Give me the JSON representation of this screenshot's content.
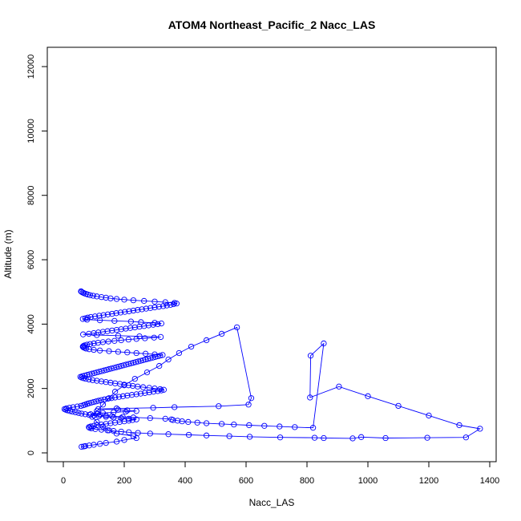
{
  "chart_data": {
    "type": "line",
    "title": "ATOM4 Northeast_Pacific_2 Nacc_LAS",
    "xlabel": "Nacc_LAS",
    "ylabel": "Altitude (m)",
    "xlim": [
      0,
      1400
    ],
    "ylim": [
      0,
      12500
    ],
    "x_ticks": [
      0,
      200,
      400,
      600,
      800,
      1000,
      1200,
      1400
    ],
    "y_ticks": [
      0,
      2000,
      4000,
      6000,
      8000,
      10000,
      12000
    ],
    "grid": false,
    "legend": "none",
    "color": "#0000ff",
    "marker": "open-circle",
    "series": [
      {
        "x": [
          60,
          67,
          72,
          85,
          100,
          120,
          140,
          175,
          200,
          240,
          230,
          175,
          150,
          130,
          110,
          95,
          110,
          130,
          150,
          170,
          200,
          235,
          275,
          315,
          345,
          380,
          420,
          470,
          520,
          570,
          617,
          608,
          510,
          365,
          295,
          175,
          115,
          180,
          210,
          240,
          205,
          165,
          130,
          110,
          90,
          120,
          140,
          160,
          195,
          230,
          285,
          335,
          355,
          360,
          375,
          390,
          410,
          440,
          470,
          520,
          560,
          610,
          660,
          710,
          760,
          820,
          855,
          812,
          810,
          905,
          1000,
          1100,
          1200,
          1300,
          1368,
          1322,
          1195,
          1058,
          978,
          950,
          855,
          825,
          712,
          612,
          545,
          470,
          412,
          345,
          285,
          245,
          215,
          190,
          165,
          145,
          125,
          105,
          92,
          86,
          84,
          90,
          100,
          110,
          125,
          140,
          155,
          170,
          185,
          200,
          215,
          227,
          240,
          215,
          190,
          165,
          140,
          117,
          100,
          85,
          72,
          60,
          50,
          40,
          30,
          22,
          14,
          8,
          4,
          10,
          20,
          32,
          46,
          58,
          66,
          72,
          78,
          84,
          92,
          100,
          108,
          116,
          125,
          135,
          146,
          158,
          170,
          183,
          196,
          210,
          225,
          240,
          254,
          268,
          282,
          296,
          310,
          322,
          330,
          318,
          300,
          282,
          262,
          244,
          228,
          214,
          200,
          186,
          170,
          155,
          140,
          125,
          110,
          96,
          84,
          74,
          66,
          60,
          56,
          62,
          70,
          78,
          86,
          94,
          102,
          110,
          118,
          126,
          134,
          142,
          150,
          158,
          166,
          174,
          182,
          190,
          198,
          206,
          214,
          222,
          230,
          238,
          246,
          254,
          262,
          270,
          278,
          286,
          294,
          302,
          310,
          318,
          326,
          300,
          270,
          240,
          210,
          180,
          150,
          120,
          100,
          85,
          75,
          70,
          66,
          64,
          66,
          70,
          78,
          88,
          100,
          114,
          130,
          148,
          168,
          190,
          214,
          240,
          268,
          298,
          320,
          250,
          180,
          110,
          65,
          84,
          100,
          115,
          130,
          145,
          160,
          175,
          190,
          205,
          220,
          235,
          250,
          265,
          280,
          295,
          310,
          322,
          300,
          255,
          222,
          168,
          120,
          78,
          64,
          72,
          80,
          90,
          104,
          118,
          132,
          146,
          160,
          174,
          188,
          202,
          216,
          230,
          244,
          258,
          272,
          286,
          300,
          314,
          328,
          340,
          352,
          362,
          372,
          365,
          335,
          300,
          265,
          230,
          200,
          175,
          155,
          140,
          125,
          110,
          98,
          88,
          80,
          74,
          68,
          64,
          60,
          58
        ],
        "y": [
          190,
          200,
          210,
          230,
          250,
          280,
          310,
          350,
          400,
          460,
          520,
          600,
          700,
          820,
          960,
          1120,
          1300,
          1500,
          1700,
          1900,
          2100,
          2300,
          2500,
          2700,
          2900,
          3100,
          3300,
          3500,
          3700,
          3900,
          1700,
          1500,
          1450,
          1420,
          1400,
          1380,
          1360,
          1340,
          1320,
          1300,
          1280,
          1260,
          1240,
          1220,
          1200,
          1180,
          1160,
          1140,
          1120,
          1100,
          1080,
          1060,
          1040,
          1020,
          1000,
          980,
          960,
          940,
          920,
          900,
          880,
          860,
          840,
          820,
          800,
          780,
          3400,
          3020,
          1720,
          2060,
          1760,
          1460,
          1160,
          860,
          750,
          480,
          470,
          460,
          490,
          450,
          460,
          470,
          480,
          500,
          520,
          540,
          560,
          580,
          600,
          620,
          640,
          660,
          680,
          700,
          720,
          740,
          760,
          780,
          800,
          820,
          840,
          860,
          880,
          900,
          920,
          940,
          960,
          980,
          1000,
          1020,
          1040,
          1060,
          1080,
          1100,
          1120,
          1140,
          1160,
          1180,
          1200,
          1220,
          1240,
          1260,
          1280,
          1300,
          1320,
          1340,
          1360,
          1380,
          1400,
          1420,
          1440,
          1460,
          1480,
          1500,
          1520,
          1540,
          1560,
          1580,
          1600,
          1620,
          1640,
          1660,
          1680,
          1700,
          1720,
          1740,
          1760,
          1780,
          1800,
          1820,
          1840,
          1860,
          1880,
          1900,
          1920,
          1940,
          1960,
          1980,
          2000,
          2020,
          2040,
          2060,
          2080,
          2100,
          2120,
          2140,
          2160,
          2180,
          2200,
          2220,
          2240,
          2260,
          2280,
          2300,
          2320,
          2340,
          2360,
          2380,
          2400,
          2420,
          2440,
          2460,
          2480,
          2500,
          2520,
          2540,
          2560,
          2580,
          2600,
          2620,
          2640,
          2660,
          2680,
          2700,
          2720,
          2740,
          2760,
          2780,
          2800,
          2820,
          2840,
          2860,
          2880,
          2900,
          2920,
          2940,
          2960,
          2980,
          3000,
          3020,
          3040,
          3060,
          3080,
          3100,
          3120,
          3140,
          3160,
          3180,
          3200,
          3220,
          3240,
          3260,
          3280,
          3300,
          3320,
          3340,
          3360,
          3380,
          3400,
          3420,
          3440,
          3460,
          3480,
          3500,
          3520,
          3540,
          3560,
          3580,
          3600,
          3620,
          3640,
          3660,
          3680,
          3700,
          3720,
          3740,
          3760,
          3780,
          3800,
          3820,
          3840,
          3860,
          3880,
          3900,
          3920,
          3940,
          3960,
          3980,
          4000,
          4020,
          4040,
          4060,
          4080,
          4100,
          4120,
          4140,
          4160,
          4180,
          4200,
          4220,
          4240,
          4260,
          4280,
          4300,
          4320,
          4340,
          4360,
          4380,
          4400,
          4420,
          4440,
          4460,
          4480,
          4500,
          4520,
          4540,
          4560,
          4580,
          4600,
          4620,
          4640,
          4660,
          4680,
          4700,
          4720,
          4740,
          4760,
          4780,
          4800,
          4820,
          4840,
          4860,
          4880,
          4900,
          4920,
          4940,
          4960,
          4980,
          5000,
          5020
        ]
      }
    ]
  }
}
